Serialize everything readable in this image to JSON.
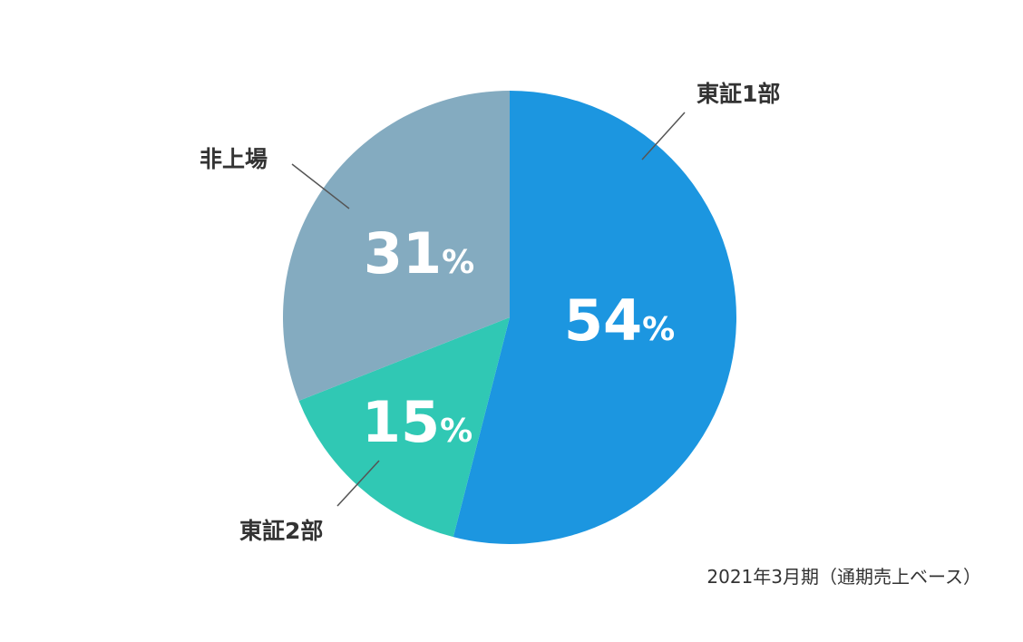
{
  "chart_data": {
    "type": "pie",
    "slices": [
      {
        "label": "東証1部",
        "value": 54,
        "display": "54",
        "unit": "%",
        "color": "#1c96e0"
      },
      {
        "label": "東証2部",
        "value": 15,
        "display": "15",
        "unit": "%",
        "color": "#30c8b4"
      },
      {
        "label": "非上場",
        "value": 31,
        "display": "31",
        "unit": "%",
        "color": "#84abc0"
      }
    ],
    "start": "12 o'clock",
    "direction": "clockwise",
    "legend": "callout labels"
  },
  "footnote": "2021年3月期（通期売上ベース）"
}
